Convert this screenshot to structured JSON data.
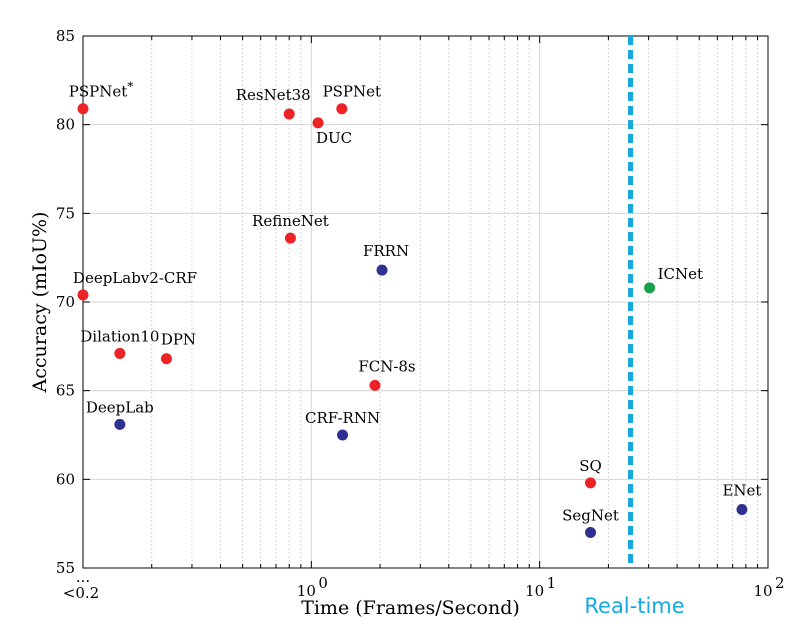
{
  "chart_data": {
    "type": "scatter",
    "title": "",
    "xlabel": "Time (Frames/Second)",
    "ylabel": "Accuracy (mIoU%)",
    "x_scale": "log",
    "xlim": [
      0.1,
      100
    ],
    "ylim": [
      55,
      85
    ],
    "x_ticks": [
      {
        "value": 0.1,
        "label": "<0.2",
        "extra": "..."
      },
      {
        "value": 1,
        "label": "10",
        "sup": "0"
      },
      {
        "value": 10,
        "label": "10",
        "sup": "1"
      },
      {
        "value": 100,
        "label": "10",
        "sup": "2"
      }
    ],
    "y_ticks": [
      55,
      60,
      65,
      70,
      75,
      80,
      85
    ],
    "colors": {
      "accurate": "#ec2224",
      "fast": "#2e3192",
      "ours": "#18a14a",
      "realtime": "#15a9e0"
    },
    "realtime": {
      "x": 25,
      "label": "Real-time"
    },
    "points": [
      {
        "name": "PSPNet",
        "sup": "*",
        "x": 0.1,
        "y": 80.9,
        "group": "accurate",
        "anchor": "above"
      },
      {
        "name": "ResNet38",
        "x": 0.8,
        "y": 80.6,
        "group": "accurate",
        "anchor": "above-left"
      },
      {
        "name": "DUC",
        "x": 1.07,
        "y": 80.1,
        "group": "accurate",
        "anchor": "below-right"
      },
      {
        "name": "PSPNet",
        "x": 1.36,
        "y": 80.9,
        "group": "accurate",
        "anchor": "above-right"
      },
      {
        "name": "RefineNet",
        "x": 0.81,
        "y": 73.6,
        "group": "accurate",
        "anchor": "above"
      },
      {
        "name": "FRRN",
        "x": 2.04,
        "y": 71.8,
        "group": "fast",
        "anchor": "above"
      },
      {
        "name": "DeepLabv2-CRF",
        "x": 0.1,
        "y": 70.4,
        "group": "accurate",
        "anchor": "above-right"
      },
      {
        "name": "ICNet",
        "x": 30.3,
        "y": 70.8,
        "group": "ours",
        "anchor": "right"
      },
      {
        "name": "Dilation10",
        "x": 0.145,
        "y": 67.1,
        "group": "accurate",
        "anchor": "above"
      },
      {
        "name": "DPN",
        "x": 0.232,
        "y": 66.8,
        "group": "accurate",
        "anchor": "above-right"
      },
      {
        "name": "FCN-8s",
        "x": 1.9,
        "y": 65.3,
        "group": "accurate",
        "anchor": "above-right"
      },
      {
        "name": "DeepLab",
        "x": 0.145,
        "y": 63.1,
        "group": "fast",
        "anchor": "above"
      },
      {
        "name": "CRF-RNN",
        "x": 1.37,
        "y": 62.5,
        "group": "fast",
        "anchor": "above"
      },
      {
        "name": "SQ",
        "x": 16.7,
        "y": 59.8,
        "group": "accurate",
        "anchor": "above"
      },
      {
        "name": "SegNet",
        "x": 16.7,
        "y": 57.0,
        "group": "fast",
        "anchor": "above"
      },
      {
        "name": "ENet",
        "x": 76.9,
        "y": 58.3,
        "group": "fast",
        "anchor": "above"
      }
    ]
  }
}
